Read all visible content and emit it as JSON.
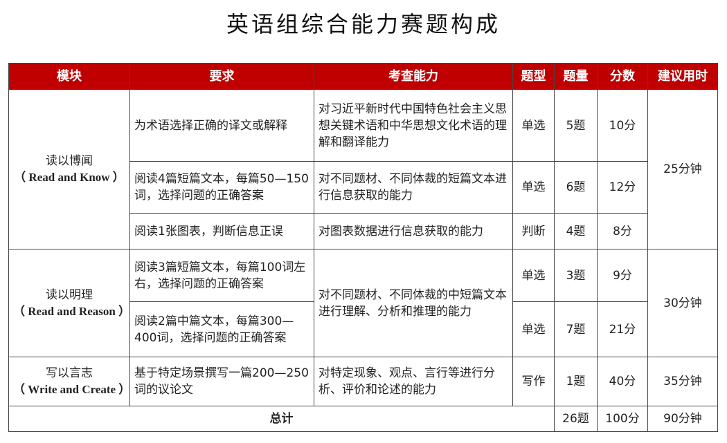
{
  "title": "英语组综合能力赛题构成",
  "colors": {
    "header_bg": "#c00000",
    "header_text": "#ffffff"
  },
  "headers": [
    "模块",
    "要求",
    "考查能力",
    "题型",
    "题量",
    "分数",
    "建议用时"
  ],
  "modules": [
    {
      "name": "读以博闻",
      "english": "（ Read and Know ）",
      "time": "25分钟",
      "rows": [
        {
          "requirement": "为术语选择正确的译文或解释",
          "ability": "对习近平新时代中国特色社会主义思想关键术语和中华思想文化术语的理解和翻译能力",
          "type": "单选",
          "count": "5题",
          "score": "10分"
        },
        {
          "requirement": "阅读4篇短篇文本，每篇50—150词，选择问题的正确答案",
          "ability": "对不同题材、不同体裁的短篇文本进行信息获取的能力",
          "type": "单选",
          "count": "6题",
          "score": "12分"
        },
        {
          "requirement": "阅读1张图表，判断信息正误",
          "ability": "对图表数据进行信息获取的能力",
          "type": "判断",
          "count": "4题",
          "score": "8分"
        }
      ]
    },
    {
      "name": "读以明理",
      "english": "（ Read and Reason ）",
      "time": "30分钟",
      "ability": "对不同题材、不同体裁的中短篇文本进行理解、分析和推理的能力",
      "rows": [
        {
          "requirement": "阅读3篇短篇文本，每篇100词左右，选择问题的正确答案",
          "type": "单选",
          "count": "3题",
          "score": "9分"
        },
        {
          "requirement": "阅读2篇中篇文本，每篇300—400词，选择问题的正确答案",
          "type": "单选",
          "count": "7题",
          "score": "21分"
        }
      ]
    },
    {
      "name": "写以言志",
      "english": "（ Write and Create ）",
      "time": "35分钟",
      "rows": [
        {
          "requirement": "基于特定场景撰写一篇200—250词的议论文",
          "ability": "对特定现象、观点、言行等进行分析、评价和论述的能力",
          "type": "写作",
          "count": "1题",
          "score": "40分"
        }
      ]
    }
  ],
  "total": {
    "label": "总计",
    "count": "26题",
    "score": "100分",
    "time": "90分钟"
  }
}
